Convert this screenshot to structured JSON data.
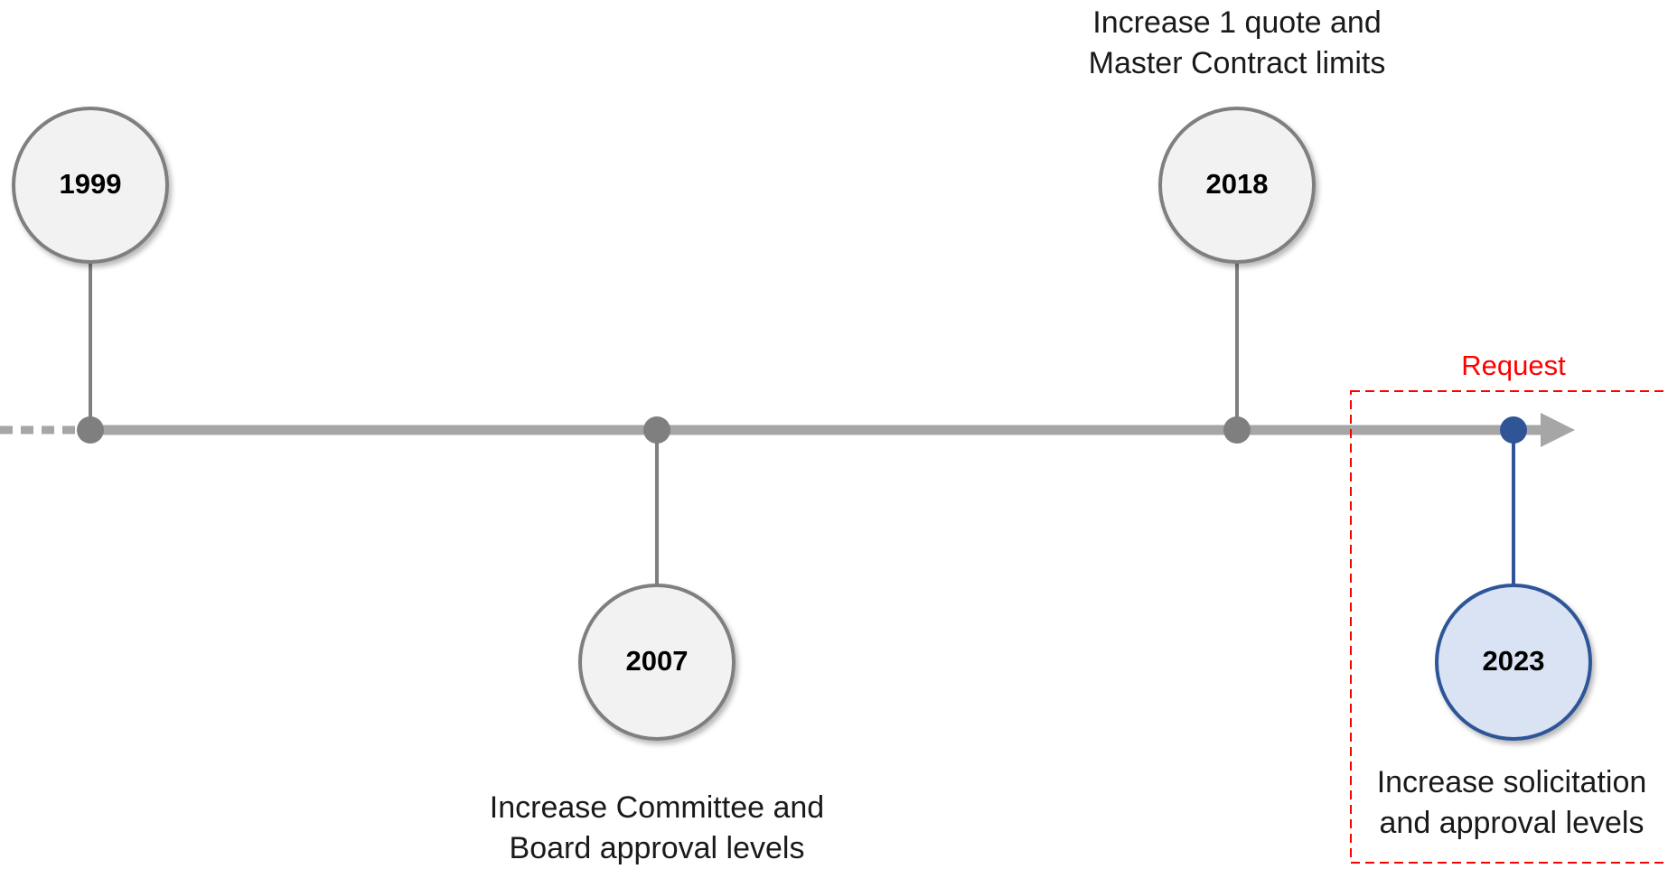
{
  "milestones": [
    {
      "year": "1999",
      "caption": []
    },
    {
      "year": "2007",
      "caption": [
        "Increase Committee and",
        "Board approval levels"
      ]
    },
    {
      "year": "2018",
      "caption": [
        "Increase 1 quote and",
        "Master Contract limits"
      ]
    },
    {
      "year": "2023",
      "caption": [
        "Increase solicitation",
        "and approval levels"
      ]
    }
  ],
  "request_label": "Request",
  "colors": {
    "axis": "#a6a6a6",
    "marker_gray": "#7f7f7f",
    "circle_fill": "#f2f2f2",
    "highlight_stroke": "#2f5597",
    "highlight_fill": "#dae3f3",
    "request_box": "#ff0000"
  }
}
